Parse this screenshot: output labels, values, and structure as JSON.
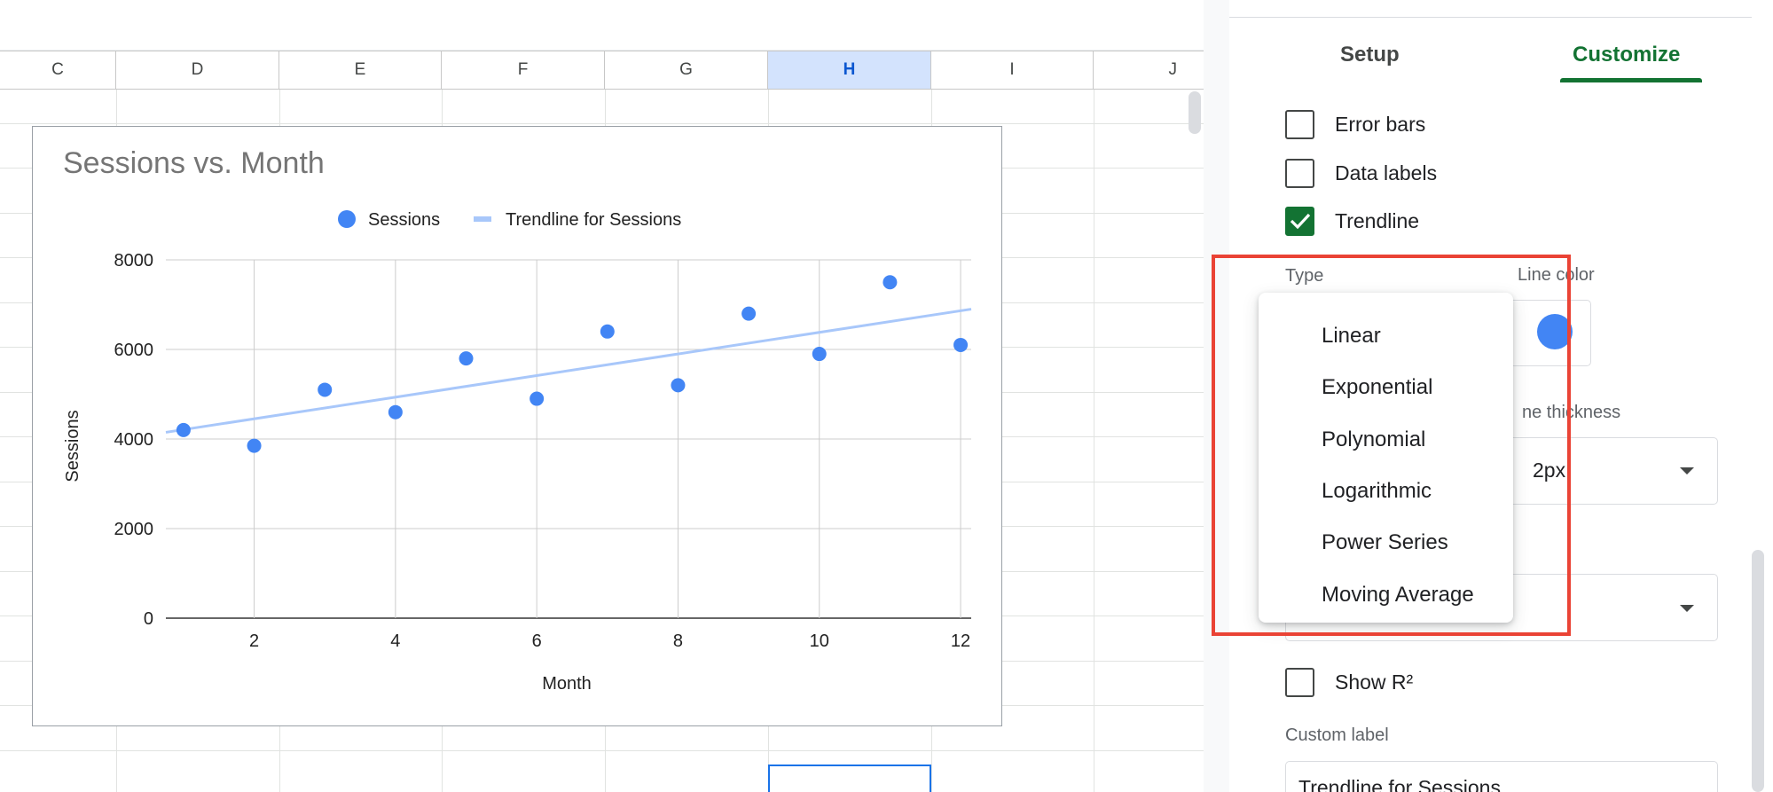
{
  "spreadsheet": {
    "columns": [
      "C",
      "D",
      "E",
      "F",
      "G",
      "H",
      "I",
      "J"
    ],
    "selected_column": "H"
  },
  "chart_data": {
    "type": "scatter",
    "title": "Sessions vs. Month",
    "xlabel": "Month",
    "ylabel": "Sessions",
    "x_ticks": [
      2,
      4,
      6,
      8,
      10,
      12
    ],
    "y_ticks": [
      0,
      2000,
      4000,
      6000,
      8000
    ],
    "xlim": [
      0.75,
      12.15
    ],
    "ylim": [
      0,
      8000
    ],
    "grid": true,
    "legend_position": "top",
    "legend": [
      "Sessions",
      "Trendline for Sessions"
    ],
    "series": [
      {
        "name": "Sessions",
        "color": "#4285f4",
        "x": [
          1,
          2,
          3,
          4,
          5,
          6,
          7,
          8,
          9,
          10,
          11,
          12
        ],
        "y": [
          4200,
          3850,
          5100,
          4600,
          5800,
          4900,
          6400,
          5200,
          6800,
          5900,
          7500,
          6100
        ]
      }
    ],
    "trendline": {
      "name": "Trendline for Sessions",
      "type": "linear",
      "color": "#a8c7fa",
      "x": [
        0.75,
        12.15
      ],
      "y": [
        4150,
        6900
      ]
    }
  },
  "panel": {
    "tabs": {
      "setup": "Setup",
      "customize": "Customize"
    },
    "active_tab": "Customize",
    "checkboxes": {
      "error_bars": "Error bars",
      "data_labels": "Data labels",
      "trendline": "Trendline",
      "show_r2": "Show R²"
    },
    "trendline_checked": true,
    "type_label": "Type",
    "line_color_label": "Line color",
    "line_color": "#4285f4",
    "line_thickness_label_visible": "ne thickness",
    "line_thickness_value_visible": "2px",
    "custom_label_label": "Custom label",
    "custom_label_value_visible": "Trendline for Sessions"
  },
  "type_menu": {
    "options": [
      "Linear",
      "Exponential",
      "Polynomial",
      "Logarithmic",
      "Power Series",
      "Moving Average"
    ]
  },
  "annotation_color": "#ea4335"
}
